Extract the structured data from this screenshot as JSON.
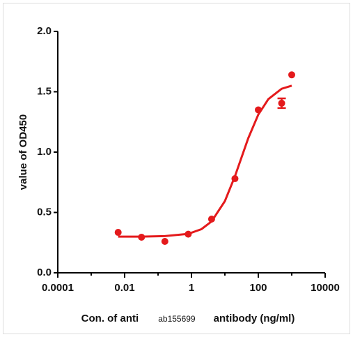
{
  "chart_data": {
    "type": "scatter",
    "ylabel": "value of OD450",
    "xlabel_parts": [
      "Con. of anti",
      "ab155699",
      "antibody (ng/ml)"
    ],
    "xscale": "log",
    "color": "#e41a1c",
    "x": [
      0.0064,
      0.032,
      0.16,
      0.8,
      4,
      20,
      100,
      500,
      1000
    ],
    "values": [
      0.335,
      0.295,
      0.26,
      0.32,
      0.445,
      0.78,
      1.35,
      1.405,
      1.64
    ],
    "errors": [
      null,
      null,
      null,
      null,
      null,
      null,
      null,
      0.04,
      null
    ],
    "fit": {
      "x": [
        0.0064,
        0.032,
        0.16,
        0.8,
        2,
        4,
        10,
        20,
        50,
        100,
        200,
        500,
        1000
      ],
      "values": [
        0.3,
        0.3,
        0.304,
        0.323,
        0.362,
        0.426,
        0.594,
        0.8,
        1.115,
        1.311,
        1.439,
        1.525,
        1.55
      ]
    },
    "xlim": [
      0.0001,
      10000
    ],
    "xticks": [
      0.0001,
      0.01,
      1,
      100,
      10000
    ],
    "xminor": [
      0.001,
      0.1,
      10,
      1000
    ],
    "ylim": [
      0,
      2
    ],
    "yticks": [
      {
        "value": 0,
        "label": "0.0"
      },
      0.5,
      {
        "value": 1,
        "label": "1.0"
      },
      1.5,
      {
        "value": 2,
        "label": "2.0"
      }
    ]
  }
}
